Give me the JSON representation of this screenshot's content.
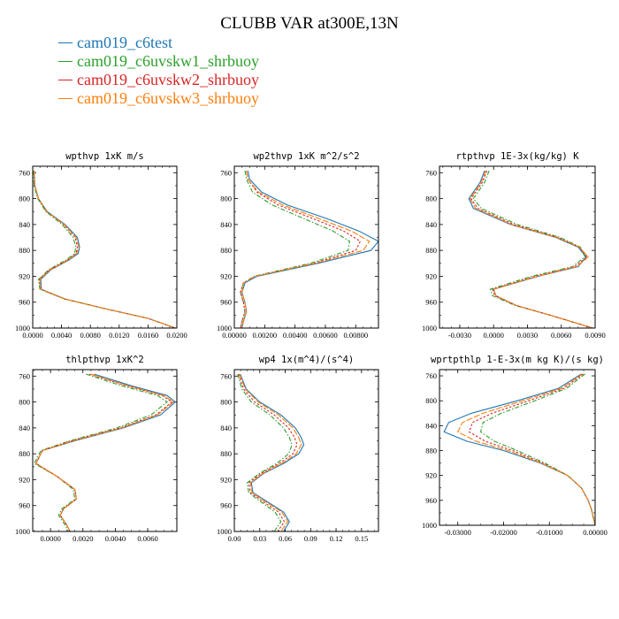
{
  "title": "CLUBB VAR at300E,13N",
  "legend": [
    {
      "name": "cam019_c6test",
      "color": "#1f77b4",
      "dash": ""
    },
    {
      "name": "cam019_c6uvskw1_shrbuoy",
      "color": "#2ca02c",
      "dash": "5,2,1.5,2"
    },
    {
      "name": "cam019_c6uvskw2_shrbuoy",
      "color": "#d62728",
      "dash": "2.5,2"
    },
    {
      "name": "cam019_c6uvskw3_shrbuoy",
      "color": "#ff7f0e",
      "dash": "7,2"
    }
  ],
  "chart_data": [
    {
      "type": "line",
      "title": "wpthvp  1xK m/s",
      "xlim": [
        0,
        0.02
      ],
      "ylim": [
        1000,
        750
      ],
      "xticks": [
        0,
        0.004,
        0.008,
        0.012,
        0.016,
        0.02
      ],
      "xtick_labels": [
        "0.0000",
        "0.0040",
        "0.0080",
        "0.0120",
        "0.0160",
        "0.0200"
      ],
      "yticks": [
        760,
        800,
        840,
        880,
        920,
        960,
        1000
      ],
      "y": [
        757,
        780,
        800,
        820,
        840,
        860,
        875,
        885,
        895,
        910,
        925,
        940,
        955,
        970,
        985,
        1000
      ],
      "series": [
        {
          "name": "cam019_c6test",
          "values": [
            0.0002,
            0.0003,
            0.0008,
            0.002,
            0.0045,
            0.0062,
            0.0065,
            0.0063,
            0.005,
            0.0025,
            0.0011,
            0.0012,
            0.0045,
            0.01,
            0.016,
            0.0198
          ]
        },
        {
          "name": "cam019_c6uvskw1_shrbuoy",
          "values": [
            0.0001,
            0.0002,
            0.0007,
            0.0018,
            0.0041,
            0.0056,
            0.006,
            0.0058,
            0.0046,
            0.0022,
            0.0008,
            0.001,
            0.0044,
            0.01,
            0.016,
            0.0198
          ]
        },
        {
          "name": "cam019_c6uvskw2_shrbuoy",
          "values": [
            0.0002,
            0.0003,
            0.0008,
            0.0019,
            0.0043,
            0.0059,
            0.0062,
            0.006,
            0.0048,
            0.0023,
            0.0009,
            0.0011,
            0.0044,
            0.01,
            0.016,
            0.0198
          ]
        },
        {
          "name": "cam019_c6uvskw3_shrbuoy",
          "values": [
            0.0002,
            0.0003,
            0.0008,
            0.0019,
            0.0044,
            0.006,
            0.0064,
            0.0061,
            0.0049,
            0.0024,
            0.001,
            0.0011,
            0.0045,
            0.01,
            0.016,
            0.0198
          ]
        }
      ]
    },
    {
      "type": "line",
      "title": "wp2thvp  1xK m^2/s^2",
      "xlim": [
        0,
        0.0095
      ],
      "ylim": [
        1000,
        750
      ],
      "xticks": [
        0,
        0.002,
        0.004,
        0.006,
        0.008
      ],
      "xtick_labels": [
        "0.00000",
        "0.00200",
        "0.00400",
        "0.00600",
        "0.00800"
      ],
      "yticks": [
        760,
        800,
        840,
        880,
        920,
        960,
        1000
      ],
      "y": [
        757,
        770,
        790,
        810,
        830,
        850,
        866,
        880,
        900,
        920,
        930,
        945,
        960,
        975,
        990,
        1000
      ],
      "series": [
        {
          "name": "cam019_c6test",
          "values": [
            0.0009,
            0.001,
            0.0018,
            0.0035,
            0.006,
            0.0082,
            0.0095,
            0.009,
            0.0055,
            0.0015,
            0.0007,
            0.0005,
            0.0007,
            0.0008,
            0.0006,
            0.0005
          ]
        },
        {
          "name": "cam019_c6uvskw1_shrbuoy",
          "values": [
            0.0007,
            0.0008,
            0.0012,
            0.0025,
            0.0045,
            0.0065,
            0.0076,
            0.0075,
            0.005,
            0.0013,
            0.0006,
            0.0004,
            0.0006,
            0.0007,
            0.0005,
            0.0004
          ]
        },
        {
          "name": "cam019_c6uvskw2_shrbuoy",
          "values": [
            0.0008,
            0.0009,
            0.0015,
            0.0029,
            0.0051,
            0.0072,
            0.0083,
            0.008,
            0.0052,
            0.0014,
            0.0006,
            0.0004,
            0.0006,
            0.0007,
            0.0005,
            0.0004
          ]
        },
        {
          "name": "cam019_c6uvskw3_shrbuoy",
          "values": [
            0.0008,
            0.0009,
            0.0016,
            0.0032,
            0.0055,
            0.0077,
            0.0089,
            0.0085,
            0.0053,
            0.0014,
            0.0006,
            0.0005,
            0.0007,
            0.0008,
            0.0006,
            0.0005
          ]
        }
      ]
    },
    {
      "type": "line",
      "title": "rtpthvp  1E-3x(kg/kg) K",
      "xlim": [
        -0.0048,
        0.009
      ],
      "ylim": [
        1000,
        750
      ],
      "xticks": [
        -0.003,
        0,
        0.003,
        0.006,
        0.009
      ],
      "xtick_labels": [
        "-0.0030",
        "0.0000",
        "0.0030",
        "0.0060",
        "0.0090"
      ],
      "yticks": [
        760,
        800,
        840,
        880,
        920,
        960,
        1000
      ],
      "y": [
        757,
        775,
        790,
        800,
        815,
        840,
        860,
        875,
        890,
        905,
        920,
        940,
        950,
        965,
        980,
        1000
      ],
      "series": [
        {
          "name": "cam019_c6test",
          "values": [
            -0.0008,
            -0.0012,
            -0.0018,
            -0.0022,
            -0.0018,
            0.0015,
            0.0055,
            0.0075,
            0.0082,
            0.0075,
            0.004,
            0.0,
            0.0002,
            0.002,
            0.005,
            0.0088
          ]
        },
        {
          "name": "cam019_c6uvskw1_shrbuoy",
          "values": [
            -0.0004,
            -0.0008,
            -0.0014,
            -0.0018,
            -0.0011,
            0.0021,
            0.0059,
            0.0077,
            0.0081,
            0.007,
            0.0034,
            -0.0003,
            -0.0001,
            0.0019,
            0.005,
            0.0088
          ]
        },
        {
          "name": "cam019_c6uvskw2_shrbuoy",
          "values": [
            -0.0006,
            -0.001,
            -0.0016,
            -0.002,
            -0.0014,
            0.0018,
            0.0057,
            0.0076,
            0.0083,
            0.0072,
            0.0037,
            -0.0001,
            0.0001,
            0.002,
            0.005,
            0.0088
          ]
        },
        {
          "name": "cam019_c6uvskw3_shrbuoy",
          "values": [
            -0.0007,
            -0.0011,
            -0.0017,
            -0.0021,
            -0.0016,
            0.0016,
            0.0056,
            0.0076,
            0.0084,
            0.0074,
            0.0039,
            0.0,
            0.0002,
            0.002,
            0.005,
            0.0088
          ]
        }
      ]
    },
    {
      "type": "line",
      "title": "thlpthvp  1xK^2",
      "xlim": [
        -0.0011,
        0.0078
      ],
      "ylim": [
        1000,
        750
      ],
      "xticks": [
        0,
        0.002,
        0.004,
        0.006
      ],
      "xtick_labels": [
        "0.0000",
        "0.0020",
        "0.0040",
        "0.0060"
      ],
      "yticks": [
        760,
        800,
        840,
        880,
        920,
        960,
        1000
      ],
      "y": [
        757,
        775,
        790,
        800,
        820,
        840,
        860,
        875,
        895,
        915,
        935,
        950,
        965,
        975,
        990,
        1000
      ],
      "series": [
        {
          "name": "cam019_c6test",
          "values": [
            0.0027,
            0.005,
            0.0072,
            0.0077,
            0.0068,
            0.0045,
            0.0015,
            -0.0005,
            -0.0009,
            0.0004,
            0.0015,
            0.0016,
            0.0008,
            0.0006,
            0.001,
            0.0012
          ]
        },
        {
          "name": "cam019_c6uvskw1_shrbuoy",
          "values": [
            0.0022,
            0.0044,
            0.0066,
            0.0072,
            0.0062,
            0.0041,
            0.0012,
            -0.0006,
            -0.001,
            0.0004,
            0.0014,
            0.0015,
            0.0007,
            0.0005,
            0.0009,
            0.0011
          ]
        },
        {
          "name": "cam019_c6uvskw2_shrbuoy",
          "values": [
            0.0024,
            0.0047,
            0.0069,
            0.0075,
            0.0065,
            0.0043,
            0.0013,
            -0.0005,
            -0.0009,
            0.0004,
            0.0015,
            0.0016,
            0.0008,
            0.0006,
            0.001,
            0.0012
          ]
        },
        {
          "name": "cam019_c6uvskw3_shrbuoy",
          "values": [
            0.0025,
            0.0048,
            0.007,
            0.0076,
            0.0066,
            0.0044,
            0.0014,
            -0.0005,
            -0.0009,
            0.0004,
            0.0015,
            0.0016,
            0.0008,
            0.0006,
            0.001,
            0.0012
          ]
        }
      ]
    },
    {
      "type": "line",
      "title": "wp4  1x(m^4)/(s^4)",
      "xlim": [
        0,
        0.17
      ],
      "ylim": [
        1000,
        750
      ],
      "xticks": [
        0,
        0.03,
        0.06,
        0.09,
        0.12,
        0.15
      ],
      "xtick_labels": [
        "0.00",
        "0.03",
        "0.06",
        "0.09",
        "0.12",
        "0.15"
      ],
      "yticks": [
        760,
        800,
        840,
        880,
        920,
        960,
        1000
      ],
      "y": [
        757,
        780,
        800,
        820,
        840,
        855,
        866,
        880,
        895,
        910,
        925,
        940,
        955,
        970,
        985,
        1000
      ],
      "series": [
        {
          "name": "cam019_c6test",
          "values": [
            0.007,
            0.014,
            0.03,
            0.055,
            0.072,
            0.079,
            0.082,
            0.076,
            0.058,
            0.035,
            0.02,
            0.022,
            0.04,
            0.058,
            0.065,
            0.058
          ]
        },
        {
          "name": "cam019_c6uvskw1_shrbuoy",
          "values": [
            0.004,
            0.009,
            0.02,
            0.042,
            0.058,
            0.065,
            0.068,
            0.064,
            0.05,
            0.03,
            0.015,
            0.017,
            0.032,
            0.048,
            0.055,
            0.047
          ]
        },
        {
          "name": "cam019_c6uvskw2_shrbuoy",
          "values": [
            0.005,
            0.011,
            0.024,
            0.047,
            0.064,
            0.071,
            0.074,
            0.069,
            0.053,
            0.032,
            0.017,
            0.019,
            0.035,
            0.052,
            0.059,
            0.051
          ]
        },
        {
          "name": "cam019_c6uvskw3_shrbuoy",
          "values": [
            0.006,
            0.013,
            0.028,
            0.052,
            0.069,
            0.076,
            0.079,
            0.073,
            0.056,
            0.034,
            0.019,
            0.021,
            0.038,
            0.056,
            0.063,
            0.055
          ]
        }
      ]
    },
    {
      "type": "line",
      "title": "wprtpthlp  1-E-3x(m kg K)/(s kg)",
      "xlim": [
        -0.034,
        0.0
      ],
      "ylim": [
        1000,
        750
      ],
      "xticks": [
        -0.03,
        -0.02,
        -0.01,
        0
      ],
      "xtick_labels": [
        "-0.03000",
        "-0.02000",
        "-0.01000",
        "0.00000"
      ],
      "yticks": [
        760,
        800,
        840,
        880,
        920,
        960,
        1000
      ],
      "y": [
        757,
        780,
        800,
        820,
        835,
        850,
        865,
        880,
        900,
        920,
        940,
        960,
        975,
        990,
        1000
      ],
      "series": [
        {
          "name": "cam019_c6test",
          "values": [
            -0.003,
            -0.008,
            -0.017,
            -0.027,
            -0.032,
            -0.033,
            -0.028,
            -0.02,
            -0.012,
            -0.006,
            -0.003,
            -0.0015,
            -0.0008,
            -0.0003,
            0.0
          ]
        },
        {
          "name": "cam019_c6uvskw1_shrbuoy",
          "values": [
            -0.0022,
            -0.0062,
            -0.0132,
            -0.0205,
            -0.0245,
            -0.025,
            -0.022,
            -0.017,
            -0.011,
            -0.006,
            -0.003,
            -0.0015,
            -0.0008,
            -0.0003,
            0.0
          ]
        },
        {
          "name": "cam019_c6uvskw2_shrbuoy",
          "values": [
            -0.0026,
            -0.0068,
            -0.0145,
            -0.0225,
            -0.0268,
            -0.0275,
            -0.024,
            -0.018,
            -0.0115,
            -0.006,
            -0.003,
            -0.0015,
            -0.0008,
            -0.0003,
            0.0
          ]
        },
        {
          "name": "cam019_c6uvskw3_shrbuoy",
          "values": [
            -0.0028,
            -0.0074,
            -0.0158,
            -0.0245,
            -0.029,
            -0.03,
            -0.026,
            -0.019,
            -0.0118,
            -0.006,
            -0.003,
            -0.0015,
            -0.0008,
            -0.0003,
            0.0
          ]
        }
      ]
    }
  ]
}
